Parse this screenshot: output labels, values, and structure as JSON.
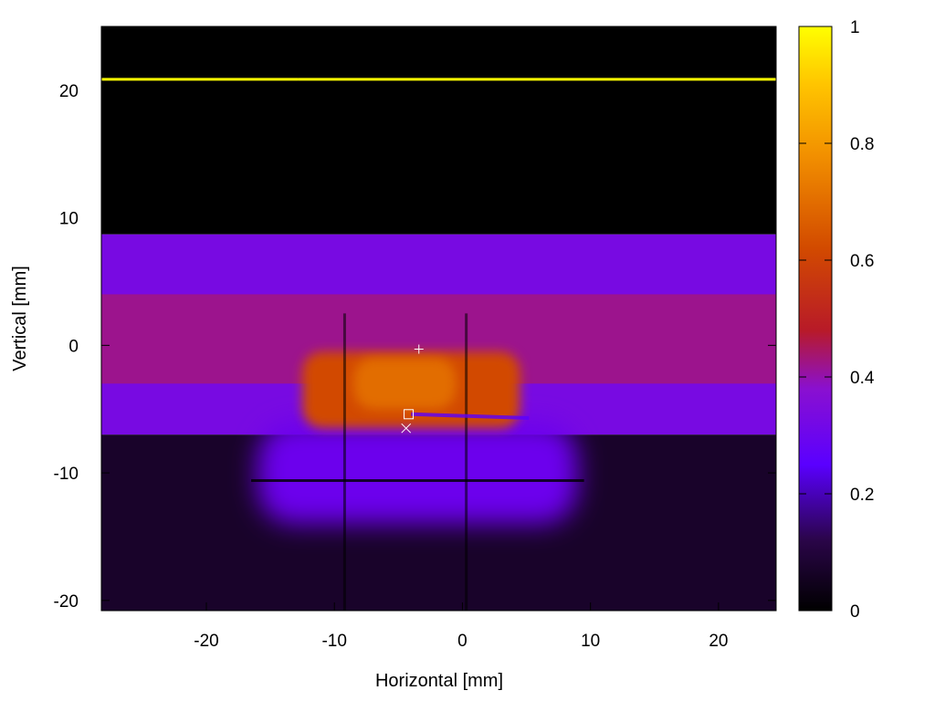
{
  "chart_data": {
    "type": "heatmap",
    "title": "",
    "xlabel": "Horizontal [mm]",
    "ylabel": "Vertical [mm]",
    "xlim": [
      -28.2,
      24.5
    ],
    "ylim": [
      -20.8,
      25
    ],
    "xticks": [
      -20,
      -10,
      0,
      10,
      20
    ],
    "xtick_labels": [
      "-20",
      "-10",
      "0",
      "10",
      "20"
    ],
    "yticks": [
      -20,
      -10,
      0,
      10,
      20
    ],
    "ytick_labels": [
      "-20",
      "-10",
      "0",
      "10",
      "20"
    ],
    "colorbar": {
      "range": [
        0,
        1
      ],
      "ticks": [
        0,
        0.2,
        0.4,
        0.6,
        0.8,
        1
      ],
      "tick_labels": [
        "0",
        "0.2",
        "0.4",
        "0.6",
        "0.8",
        "1"
      ],
      "colormap": [
        {
          "v": 0.0,
          "color": "#000000"
        },
        {
          "v": 0.12,
          "color": "#2a0548"
        },
        {
          "v": 0.25,
          "color": "#5a00ff"
        },
        {
          "v": 0.38,
          "color": "#8a10d0"
        },
        {
          "v": 0.48,
          "color": "#b81a28"
        },
        {
          "v": 0.62,
          "color": "#d24a00"
        },
        {
          "v": 0.78,
          "color": "#f29000"
        },
        {
          "v": 0.9,
          "color": "#ffc400"
        },
        {
          "v": 1.0,
          "color": "#ffff00"
        }
      ]
    },
    "intensity_regions": [
      {
        "x": [
          -28.2,
          24.5
        ],
        "y": [
          8.7,
          25
        ],
        "value": 0.0
      },
      {
        "x": [
          -28.2,
          24.5
        ],
        "y": [
          -7,
          8.7
        ],
        "value": 0.33
      },
      {
        "x": [
          -28.2,
          24.5
        ],
        "y": [
          -3,
          4
        ],
        "value": 0.42
      },
      {
        "x": [
          -28.2,
          24.5
        ],
        "y": [
          -20.8,
          -7
        ],
        "value": 0.07
      },
      {
        "x": [
          -16,
          9
        ],
        "y": [
          -14,
          -6
        ],
        "value": 0.3
      },
      {
        "x": [
          -12.5,
          4.5
        ],
        "y": [
          -6.5,
          -0.5
        ],
        "value": 0.62
      },
      {
        "x": [
          -8.5,
          -0.5
        ],
        "y": [
          -5,
          -1
        ],
        "value": 0.7
      },
      {
        "x": [
          -28.2,
          -12.8
        ],
        "y": [
          20.7,
          21.0
        ],
        "value": 1.0
      },
      {
        "x": [
          -12.8,
          24.5
        ],
        "y": [
          20.7,
          21.0
        ],
        "value": 1.0
      }
    ],
    "markers": [
      {
        "symbol": "+",
        "x": -3.4,
        "y": -0.3
      },
      {
        "symbol": "square",
        "x": -4.2,
        "y": -5.4
      },
      {
        "symbol": "x",
        "x": -4.4,
        "y": -6.5
      }
    ]
  }
}
